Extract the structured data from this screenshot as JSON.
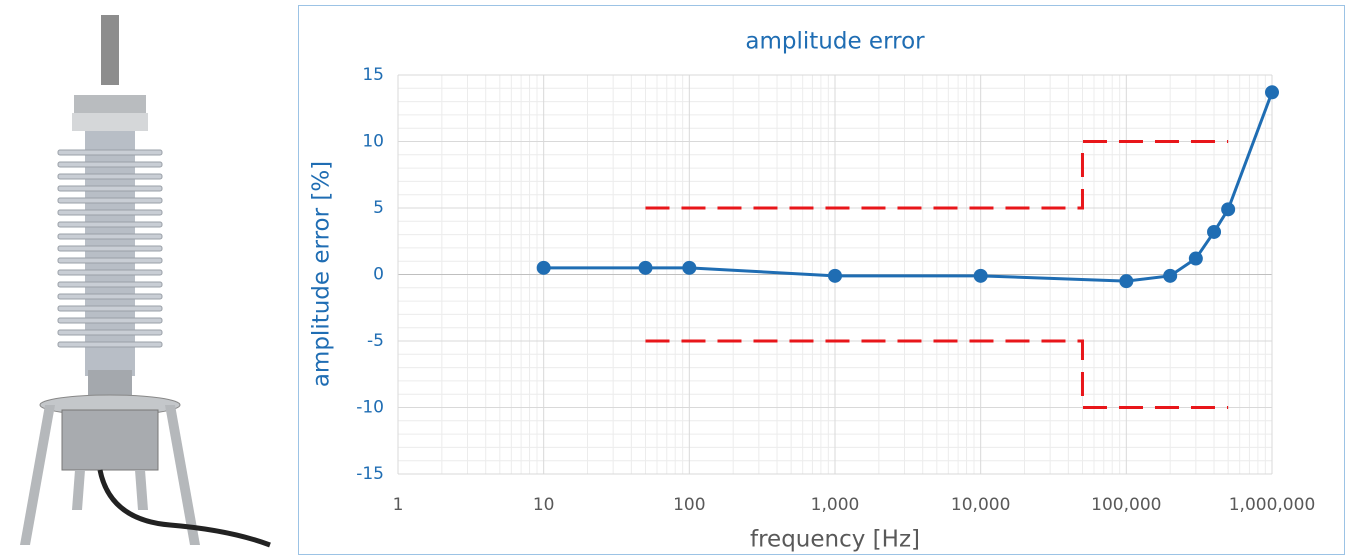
{
  "chart_data": {
    "type": "line",
    "title": "amplitude error",
    "xlabel": "frequency [Hz]",
    "ylabel": "amplitude error [%]",
    "xscale": "log",
    "grid": true,
    "minor_grid": true,
    "xlim": [
      1,
      1000000
    ],
    "xticks": [
      1,
      10,
      100,
      {
        "value": 1000,
        "label": "1,000"
      },
      {
        "value": 10000,
        "label": "10,000"
      },
      {
        "value": 100000,
        "label": "100,000"
      },
      {
        "value": 1000000,
        "label": "1,000,000"
      }
    ],
    "ylim": [
      -15,
      15
    ],
    "yticks": [
      -15,
      -10,
      -5,
      0,
      5,
      10,
      15
    ],
    "series": [
      {
        "color": "#1f6db3",
        "markers": true,
        "dashed": false,
        "x": [
          10,
          50,
          100,
          1000,
          10000,
          100000,
          200000,
          300000,
          400000,
          500000,
          1000000
        ],
        "values": [
          0.5,
          0.5,
          0.5,
          -0.1,
          -0.1,
          -0.5,
          -0.1,
          1.2,
          3.2,
          4.9,
          13.7
        ]
      },
      {
        "color": "#e8161a",
        "markers": false,
        "dashed": true,
        "x": [
          50,
          50000,
          50000,
          500000
        ],
        "values": [
          5,
          5,
          10,
          10
        ]
      },
      {
        "color": "#e8161a",
        "markers": false,
        "dashed": true,
        "x": [
          50,
          50000,
          50000,
          500000
        ],
        "values": [
          -5,
          -5,
          -10,
          -10
        ]
      }
    ]
  }
}
